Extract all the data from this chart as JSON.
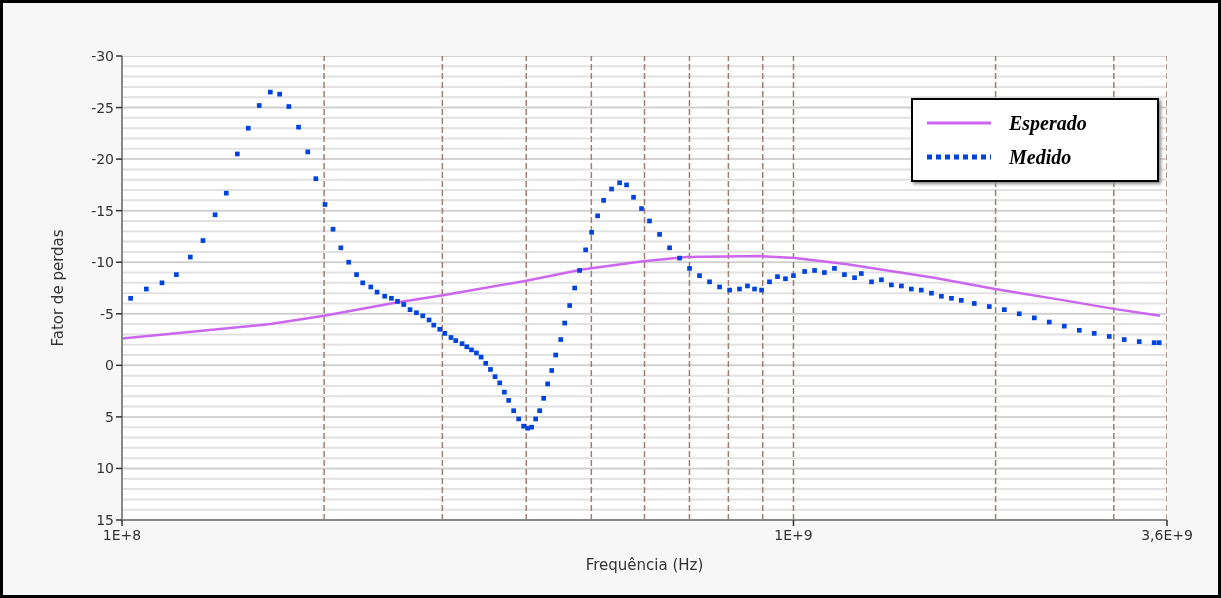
{
  "chart_data": {
    "type": "line",
    "xlabel": "Frequência (Hz)",
    "ylabel": "Fator de perdas",
    "log": "x",
    "grid": true,
    "legend": "top right",
    "xlim": [
      100000000,
      3600000000
    ],
    "xticks": [
      {
        "value": 100000000,
        "label": "1E+8"
      },
      {
        "value": 200000000,
        "label": null
      },
      {
        "value": 300000000,
        "label": null
      },
      {
        "value": 400000000,
        "label": null
      },
      {
        "value": 500000000,
        "label": null
      },
      {
        "value": 600000000,
        "label": null
      },
      {
        "value": 700000000,
        "label": null
      },
      {
        "value": 800000000,
        "label": null
      },
      {
        "value": 900000000,
        "label": null
      },
      {
        "value": 1000000000,
        "label": "1E+9"
      },
      {
        "value": 2000000000,
        "label": null
      },
      {
        "value": 3000000000,
        "label": null
      },
      {
        "value": 3600000000,
        "label": "3,6E+9"
      }
    ],
    "ylim": [
      15,
      -30
    ],
    "yticks": [
      -30,
      -25,
      -20,
      -15,
      -10,
      -5,
      0,
      5,
      10,
      15
    ],
    "series": [
      {
        "name": "Esperado",
        "color": "#cc66ee",
        "line_style": "solid",
        "marker": "none",
        "x": [
          100000000.0,
          120500000.0,
          166300000.0,
          200000000.0,
          256300000.0,
          300700000.0,
          400000000.0,
          484700000.0,
          597000000.0,
          693000000.0,
          892800000.0,
          1006000000.0,
          1202000000.0,
          1620000000.0,
          1996000000.0,
          2531000000.0,
          2984000000.0,
          3516000000.0
        ],
        "values": [
          -2.6,
          -3.1,
          -4.0,
          -4.8,
          -6.1,
          -6.8,
          -8.2,
          -9.3,
          -10.1,
          -10.5,
          -10.6,
          -10.4,
          -9.8,
          -8.5,
          -7.4,
          -6.3,
          -5.5,
          -4.8
        ]
      },
      {
        "name": "Medido",
        "type": "scatter",
        "color": "#0044dd",
        "marker": "square",
        "x": [
          103000000.0,
          108700000.0,
          114700000.0,
          120500000.0,
          126400000.0,
          132000000.0,
          137600000.0,
          143000000.0,
          148500000.0,
          154200000.0,
          160100000.0,
          166300000.0,
          171700000.0,
          177200000.0,
          183200000.0,
          189100000.0,
          194400000.0,
          200600000.0,
          206200000.0,
          211800000.0,
          217600000.0,
          223500000.0,
          228300000.0,
          234700000.0,
          239800000.0,
          246200000.0,
          251900000.0,
          257200000.0,
          262800000.0,
          268500000.0,
          274500000.0,
          280500000.0,
          286600000.0,
          291300000.0,
          297300000.0,
          302500000.0,
          309000000.0,
          314100000.0,
          321000000.0,
          326200000.0,
          331500000.0,
          337200000.0,
          342600000.0,
          348100000.0,
          353800000.0,
          359400000.0,
          365200000.0,
          371100000.0,
          376600000.0,
          383100000.0,
          389700000.0,
          396400000.0,
          401900000.0,
          407400000.0,
          413100000.0,
          418800000.0,
          424600000.0,
          430400000.0,
          436500000.0,
          442500000.0,
          450200000.0,
          456400000.0,
          464200000.0,
          472200000.0,
          480300000.0,
          490300000.0,
          500500000.0,
          510900000.0,
          521500000.0,
          535900000.0,
          550900000.0,
          564200000.0,
          577900000.0,
          593900000.0,
          610400000.0,
          631800000.0,
          653900000.0,
          676700000.0,
          700200000.0,
          724600000.0,
          749900000.0,
          776200000.0,
          803400000.0,
          831000000.0,
          854100000.0,
          875000000.0,
          896400000.0,
          921000000.0,
          946700000.0,
          973000000.0,
          1000000000.0,
          1039000000.0,
          1075000000.0,
          1112000000.0,
          1151000000.0,
          1191000000.0,
          1233000000.0,
          1262000000.0,
          1307000000.0,
          1352000000.0,
          1399000000.0,
          1448000000.0,
          1498000000.0,
          1550000000.0,
          1605000000.0,
          1661000000.0,
          1719000000.0,
          1778000000.0,
          1859000000.0,
          1957000000.0,
          2061000000.0,
          2169000000.0,
          2284000000.0,
          2404000000.0,
          2531000000.0,
          2665000000.0,
          2805000000.0,
          2953000000.0,
          3109000000.0,
          3273000000.0,
          3445000000.0,
          3505000000.0
        ],
        "values": [
          -6.5,
          -7.4,
          -8.0,
          -8.8,
          -10.5,
          -12.1,
          -14.6,
          -16.7,
          -20.5,
          -23.0,
          -25.2,
          -26.5,
          -26.3,
          -25.1,
          -23.1,
          -20.7,
          -18.1,
          -15.6,
          -13.2,
          -11.4,
          -10.0,
          -8.8,
          -8.0,
          -7.6,
          -7.1,
          -6.7,
          -6.5,
          -6.2,
          -5.9,
          -5.4,
          -5.1,
          -4.8,
          -4.4,
          -3.9,
          -3.5,
          -3.1,
          -2.7,
          -2.4,
          -2.1,
          -1.8,
          -1.5,
          -1.2,
          -0.8,
          -0.2,
          0.4,
          1.1,
          1.7,
          2.6,
          3.4,
          4.4,
          5.2,
          5.9,
          6.1,
          6.0,
          5.2,
          4.4,
          3.2,
          1.8,
          0.5,
          -1.0,
          -2.5,
          -4.1,
          -5.8,
          -7.5,
          -9.2,
          -11.2,
          -12.9,
          -14.5,
          -16.0,
          -17.1,
          -17.7,
          -17.5,
          -16.3,
          -15.2,
          -14.0,
          -12.7,
          -11.4,
          -10.4,
          -9.4,
          -8.7,
          -8.1,
          -7.6,
          -7.3,
          -7.4,
          -7.7,
          -7.4,
          -7.3,
          -8.1,
          -8.6,
          -8.4,
          -8.7,
          -9.1,
          -9.2,
          -9.0,
          -9.4,
          -8.8,
          -8.5,
          -8.9,
          -8.1,
          -8.3,
          -7.8,
          -7.7,
          -7.4,
          -7.3,
          -7.0,
          -6.7,
          -6.5,
          -6.3,
          -6.0,
          -5.7,
          -5.4,
          -5.0,
          -4.6,
          -4.2,
          -3.8,
          -3.4,
          -3.1,
          -2.8,
          -2.5,
          -2.3,
          -2.2,
          -2.2
        ]
      }
    ]
  }
}
